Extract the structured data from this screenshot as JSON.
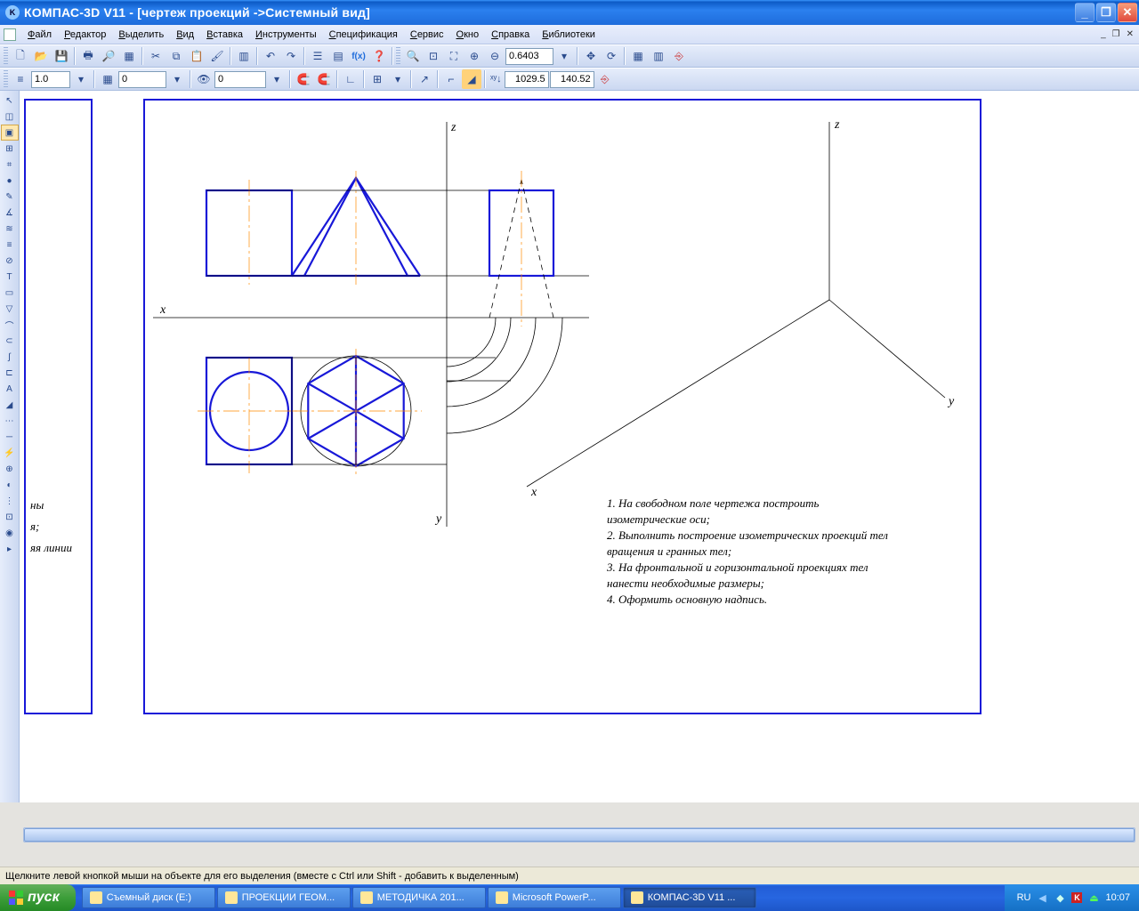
{
  "title": "КОМПАС-3D V11 - [чертеж проекций ->Системный вид]",
  "app_icon_letter": "K",
  "menu": [
    "Файл",
    "Редактор",
    "Выделить",
    "Вид",
    "Вставка",
    "Инструменты",
    "Спецификация",
    "Сервис",
    "Окно",
    "Справка",
    "Библиотеки"
  ],
  "toolbar2": {
    "val1": "1.0",
    "val2": "0",
    "val3": "0",
    "zoom": "0.6403",
    "coord_x": "1029.5",
    "coord_y": "140.52"
  },
  "left_tool_count": 29,
  "drawing": {
    "frame_color": "#1818d8",
    "thin_color": "#000000",
    "axis_color": "#ff8a00",
    "bg": "#ffffff",
    "stroke_main": 2.2,
    "stroke_thin": 0.8,
    "stroke_axis": 0.7,
    "dasharray_axis": "18 4 3 4",
    "dasharray_dash": "6 5",
    "label_font": "italic 14px Georgia,serif",
    "text_font": "italic 13px Georgia,serif",
    "labels": {
      "x1": "x",
      "y1": "y",
      "z1": "z",
      "x2": "x",
      "y2": "y",
      "z2": "z"
    },
    "instructions": [
      "1. На свободном поле чертежа построить",
      "изометрические оси;",
      "2. Выполнить построение изометрических проекций тел",
      "вращения и гранных тел;",
      "3. На фронтальной и горизонтальной проекциях тел",
      "нанести необходимые размеры;",
      "4. Оформить основную надпись."
    ]
  },
  "side_text": [
    "ны",
    "я;",
    "яя линии"
  ],
  "status": "Щелкните левой кнопкой мыши на объекте для его выделения (вместе с Ctrl или Shift - добавить к выделенным)",
  "taskbar": {
    "start": "пуск",
    "items": [
      {
        "label": "Съемный диск (E:)",
        "active": false
      },
      {
        "label": "ПРОЕКЦИИ ГЕОМ...",
        "active": false
      },
      {
        "label": "МЕТОДИЧКА 201...",
        "active": false
      },
      {
        "label": "Microsoft PowerP...",
        "active": false
      },
      {
        "label": "КОМПАС-3D V11 ...",
        "active": true
      }
    ],
    "lang": "RU",
    "time": "10:07"
  },
  "colors": {
    "xp_blue": "#1e6cdb",
    "toolbar_bg": "#d7e1f7"
  }
}
